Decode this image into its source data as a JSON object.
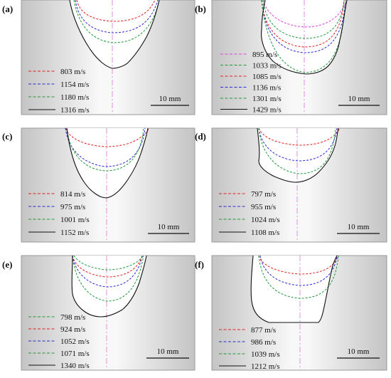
{
  "colors": {
    "pink": "#e040e0",
    "red": "#e02020",
    "blue": "#2a2ad8",
    "green": "#1f9a3a",
    "black": "#111111",
    "axis": "#e090d8"
  },
  "scale_bar_label": "10 mm",
  "panels": [
    {
      "label": "(a)",
      "legend": [
        {
          "text": "803 m/s",
          "color": "red",
          "style": "dashed"
        },
        {
          "text": "1154 m/s",
          "color": "blue",
          "style": "dashed"
        },
        {
          "text": "1180 m/s",
          "color": "green",
          "style": "dashed"
        },
        {
          "text": "1316 m/s",
          "color": "black",
          "style": "solid"
        }
      ]
    },
    {
      "label": "(b)",
      "legend": [
        {
          "text": "895 m/s",
          "color": "pink",
          "style": "dashed"
        },
        {
          "text": "1033 m/s",
          "color": "green",
          "style": "dashed"
        },
        {
          "text": "1085 m/s",
          "color": "red",
          "style": "dashed"
        },
        {
          "text": "1136 m/s",
          "color": "blue",
          "style": "dashed"
        },
        {
          "text": "1301 m/s",
          "color": "green",
          "style": "dashed"
        },
        {
          "text": "1429 m/s",
          "color": "black",
          "style": "solid"
        }
      ]
    },
    {
      "label": "(c)",
      "legend": [
        {
          "text": "814 m/s",
          "color": "red",
          "style": "dashed"
        },
        {
          "text": "975 m/s",
          "color": "blue",
          "style": "dashed"
        },
        {
          "text": "1001 m/s",
          "color": "green",
          "style": "dashed"
        },
        {
          "text": "1152 m/s",
          "color": "black",
          "style": "solid"
        }
      ]
    },
    {
      "label": "(d)",
      "legend": [
        {
          "text": "797 m/s",
          "color": "red",
          "style": "dashed"
        },
        {
          "text": "955 m/s",
          "color": "blue",
          "style": "dashed"
        },
        {
          "text": "1024 m/s",
          "color": "green",
          "style": "dashed"
        },
        {
          "text": "1108 m/s",
          "color": "black",
          "style": "solid"
        }
      ]
    },
    {
      "label": "(e)",
      "legend": [
        {
          "text": "798 m/s",
          "color": "green",
          "style": "dashed"
        },
        {
          "text": "924 m/s",
          "color": "red",
          "style": "dashed"
        },
        {
          "text": "1052 m/s",
          "color": "blue",
          "style": "dashed"
        },
        {
          "text": "1071 m/s",
          "color": "green",
          "style": "dashed"
        },
        {
          "text": "1340 m/s",
          "color": "black",
          "style": "solid"
        }
      ]
    },
    {
      "label": "(f)",
      "legend": [
        {
          "text": "877 m/s",
          "color": "red",
          "style": "dashed"
        },
        {
          "text": "986 m/s",
          "color": "blue",
          "style": "dashed"
        },
        {
          "text": "1039 m/s",
          "color": "green",
          "style": "dashed"
        },
        {
          "text": "1212 m/s",
          "color": "black",
          "style": "solid"
        }
      ]
    }
  ]
}
